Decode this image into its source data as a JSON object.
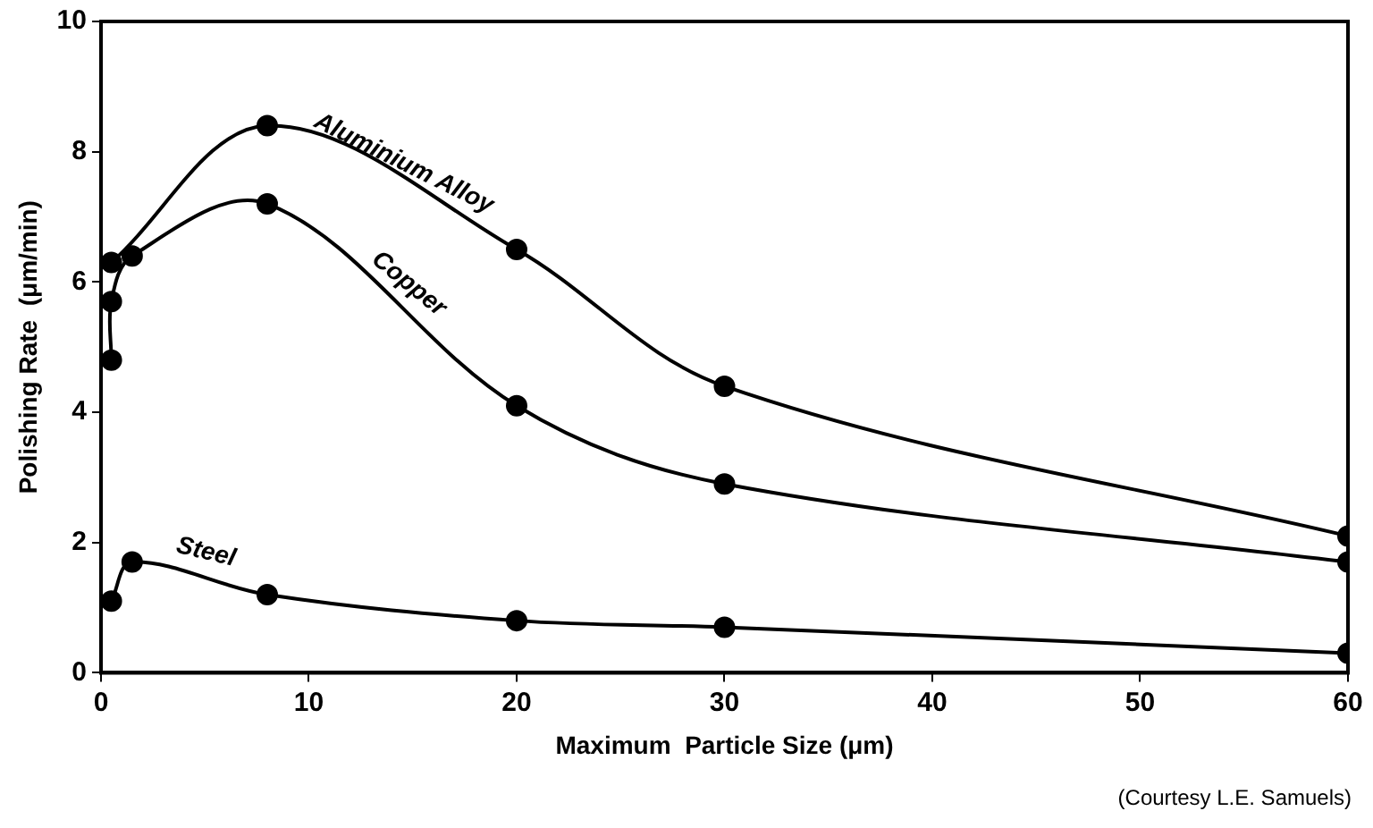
{
  "chart_data": {
    "type": "line",
    "xlabel": "Maximum  Particle Size (μm)",
    "ylabel": "Polishing Rate  (μm/min)",
    "xlim": [
      0,
      60
    ],
    "xticks": [
      0,
      10,
      20,
      30,
      40,
      50,
      60
    ],
    "ylim": [
      0,
      10
    ],
    "yticks": [
      0,
      2,
      4,
      6,
      8,
      10
    ],
    "grid": false,
    "legend": false,
    "marker": "circle",
    "line_style": "solid",
    "series": [
      {
        "name": "Aluminium Alloy",
        "color": "#000000",
        "x": [
          0.5,
          8,
          20,
          30,
          60
        ],
        "values": [
          6.3,
          8.4,
          6.5,
          4.4,
          2.1
        ]
      },
      {
        "name": "Copper",
        "color": "#000000",
        "x": [
          0.5,
          0.5,
          1.5,
          8,
          20,
          30,
          60
        ],
        "values": [
          4.8,
          5.7,
          6.4,
          7.2,
          4.1,
          2.9,
          1.7
        ]
      },
      {
        "name": "Steel",
        "color": "#000000",
        "x": [
          0.5,
          1.5,
          8,
          20,
          30,
          60
        ],
        "values": [
          1.1,
          1.7,
          1.2,
          0.8,
          0.7,
          0.3
        ]
      }
    ],
    "annotations": [
      "(Courtesy  L.E. Samuels)"
    ]
  }
}
